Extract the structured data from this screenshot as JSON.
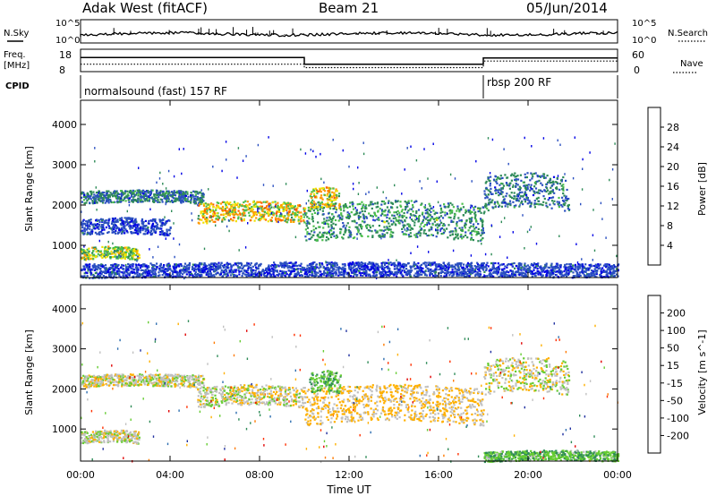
{
  "header": {
    "station": "Adak West (fitACF)",
    "beam": "Beam 21",
    "date": "05/Jun/2014"
  },
  "summary": {
    "left_labels": {
      "nsky": "N.Sky",
      "freq": "Freq.",
      "freq_unit": "[MHz]",
      "cpid": "CPID"
    },
    "right_labels": {
      "nsearch": "N.Search",
      "nave": "Nave"
    },
    "noise_ticks_left": [
      "10^5",
      "10^0"
    ],
    "noise_ticks_right": [
      "10^5",
      "10^0"
    ],
    "freq_ticks": [
      "18",
      "8"
    ],
    "nave_ticks": [
      "60",
      "0"
    ],
    "freq_trace": [
      {
        "start_h": 0,
        "end_h": 10,
        "value": 14.5
      },
      {
        "start_h": 10,
        "end_h": 18,
        "value": 11.0
      },
      {
        "start_h": 18,
        "end_h": 24,
        "value": 14.3
      }
    ],
    "nave_trace": [
      {
        "start_h": 0,
        "end_h": 10,
        "value": 18
      },
      {
        "start_h": 10,
        "end_h": 18,
        "value": 7
      },
      {
        "start_h": 18,
        "end_h": 24,
        "value": 28
      }
    ],
    "cpid_segments": [
      {
        "start_h": 0,
        "end_h": 18,
        "label": "normalsound (fast) 157 RF"
      },
      {
        "start_h": 18,
        "end_h": 24,
        "label": "rbsp 200 RF"
      }
    ]
  },
  "chart_data": [
    {
      "type": "heatmap",
      "panel": "power",
      "ylabel": "Slant Range [km]",
      "ylim": [
        200,
        4600
      ],
      "yticks": [
        "1000",
        "2000",
        "3000",
        "4000"
      ],
      "xlim_hours": [
        0,
        24
      ],
      "colorbar": {
        "label": "Power [dB]",
        "ticks": [
          "4",
          "8",
          "12",
          "16",
          "20",
          "24",
          "28"
        ],
        "colors": [
          "#0000e6",
          "#2a4fc0",
          "#2e8b57",
          "#4cc04c",
          "#f0e000",
          "#ff9900",
          "#ff5a00",
          "#e80000"
        ]
      },
      "echo_regions": [
        {
          "t0": 0.0,
          "t1": 2.6,
          "r0": 650,
          "r1": 950,
          "value_db": 18
        },
        {
          "t0": 0.0,
          "t1": 5.5,
          "r0": 2050,
          "r1": 2350,
          "value_db": 10
        },
        {
          "t0": 0.0,
          "t1": 4.0,
          "r0": 1250,
          "r1": 1650,
          "value_db": 6
        },
        {
          "t0": 5.2,
          "t1": 10.0,
          "r0": 1550,
          "r1": 2050,
          "value_db": 22
        },
        {
          "t0": 10.0,
          "t1": 18.0,
          "r0": 1100,
          "r1": 2000,
          "value_db": 12
        },
        {
          "t0": 10.2,
          "t1": 11.6,
          "r0": 1900,
          "r1": 2400,
          "value_db": 20
        },
        {
          "t0": 18.0,
          "t1": 21.8,
          "r0": 1850,
          "r1": 2700,
          "value_db": 10
        },
        {
          "t0": 0.0,
          "t1": 24.0,
          "r0": 200,
          "r1": 550,
          "value_db": 6
        }
      ]
    },
    {
      "type": "heatmap",
      "panel": "velocity",
      "ylabel": "Slant Range [km]",
      "ylim": [
        200,
        4600
      ],
      "yticks": [
        "1000",
        "2000",
        "3000",
        "4000"
      ],
      "xlim_hours": [
        0,
        24
      ],
      "colorbar": {
        "label": "Velocity [m s^-1]",
        "ticks": [
          "200",
          "100",
          "50",
          "15",
          "-15",
          "-50",
          "-100",
          "-200"
        ],
        "colors": [
          "#2030a0",
          "#2f6fb0",
          "#2e8b57",
          "#66cc33",
          "#c0c0c0",
          "#ffb000",
          "#ff7a00",
          "#ff3000",
          "#e00000"
        ]
      },
      "echo_regions": [
        {
          "t0": 0.0,
          "t1": 2.6,
          "r0": 650,
          "r1": 950,
          "value_ms": 0
        },
        {
          "t0": 0.0,
          "t1": 5.5,
          "r0": 2050,
          "r1": 2350,
          "value_ms": 0
        },
        {
          "t0": 5.2,
          "t1": 10.0,
          "r0": 1550,
          "r1": 2050,
          "value_ms": 0
        },
        {
          "t0": 10.0,
          "t1": 18.0,
          "r0": 1100,
          "r1": 2000,
          "value_ms": -20
        },
        {
          "t0": 10.2,
          "t1": 11.6,
          "r0": 1900,
          "r1": 2400,
          "value_ms": 40
        },
        {
          "t0": 18.0,
          "t1": 21.8,
          "r0": 1850,
          "r1": 2700,
          "value_ms": 0
        },
        {
          "t0": 18.0,
          "t1": 24.0,
          "r0": 200,
          "r1": 450,
          "value_ms": 40
        }
      ]
    }
  ],
  "xaxis": {
    "label": "Time UT",
    "ticks": [
      "00:00",
      "04:00",
      "08:00",
      "12:00",
      "16:00",
      "20:00",
      "00:00"
    ]
  }
}
